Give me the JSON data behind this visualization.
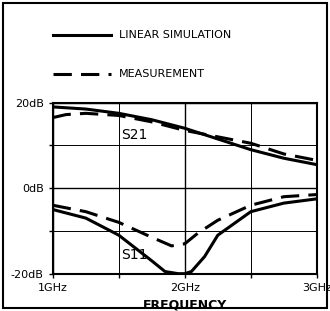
{
  "xlabel": "FREQUENCY",
  "xlim": [
    1.0,
    3.0
  ],
  "ylim": [
    -20,
    20
  ],
  "xtick_labels": [
    "1GHz",
    "2GHz",
    "3GHz"
  ],
  "ytick_labels": [
    "-20dB",
    "0dB",
    "20dB"
  ],
  "legend_solid": "LINEAR SIMULATION",
  "legend_dashed": "MEASUREMENT",
  "s21_label": "S21",
  "s11_label": "S11",
  "background_color": "#ffffff",
  "line_color": "#000000",
  "grid_color": "#555555",
  "s21_sim_x": [
    1.0,
    1.1,
    1.25,
    1.5,
    1.75,
    2.0,
    2.25,
    2.5,
    2.75,
    3.0
  ],
  "s21_sim_y": [
    19.0,
    18.8,
    18.5,
    17.5,
    16.0,
    14.0,
    11.5,
    9.0,
    7.0,
    5.5
  ],
  "s21_meas_x": [
    1.0,
    1.1,
    1.25,
    1.5,
    1.75,
    2.0,
    2.25,
    2.5,
    2.75,
    3.0
  ],
  "s21_meas_y": [
    16.5,
    17.2,
    17.5,
    17.0,
    15.5,
    13.5,
    12.0,
    10.5,
    8.0,
    6.5
  ],
  "s11_sim_x": [
    1.0,
    1.25,
    1.5,
    1.75,
    1.85,
    1.95,
    2.0,
    2.05,
    2.15,
    2.25,
    2.5,
    2.75,
    3.0
  ],
  "s11_sim_y": [
    -5.0,
    -7.0,
    -11.0,
    -17.0,
    -19.5,
    -20.0,
    -20.0,
    -19.5,
    -16.0,
    -11.0,
    -5.5,
    -3.5,
    -2.5
  ],
  "s11_meas_x": [
    1.0,
    1.25,
    1.5,
    1.75,
    1.9,
    2.0,
    2.1,
    2.25,
    2.5,
    2.75,
    3.0
  ],
  "s11_meas_y": [
    -4.0,
    -5.5,
    -8.0,
    -11.5,
    -13.5,
    -13.0,
    -10.5,
    -7.5,
    -4.0,
    -2.0,
    -1.5
  ],
  "figsize": [
    3.3,
    3.11
  ],
  "dpi": 100
}
